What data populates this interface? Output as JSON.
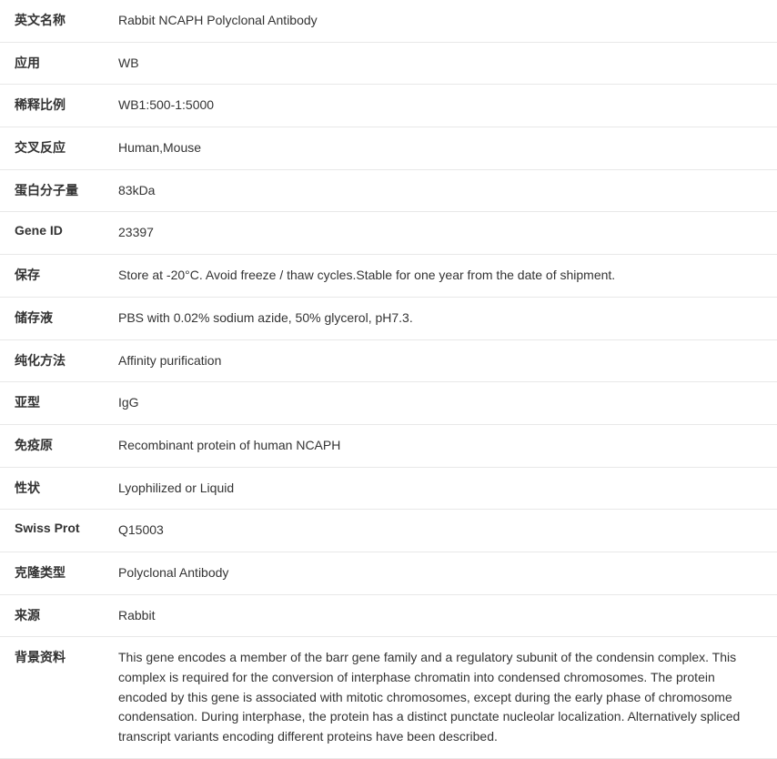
{
  "rows": [
    {
      "label": "英文名称",
      "value": "Rabbit NCAPH Polyclonal Antibody"
    },
    {
      "label": "应用",
      "value": "WB"
    },
    {
      "label": "稀释比例",
      "value": "WB1:500-1:5000"
    },
    {
      "label": "交叉反应",
      "value": "Human,Mouse"
    },
    {
      "label": "蛋白分子量",
      "value": "83kDa"
    },
    {
      "label": "Gene ID",
      "value": "23397"
    },
    {
      "label": "保存",
      "value": "Store at -20°C. Avoid freeze / thaw cycles.Stable for one year from the date of shipment."
    },
    {
      "label": "储存液",
      "value": "PBS with 0.02% sodium azide, 50% glycerol, pH7.3."
    },
    {
      "label": "纯化方法",
      "value": "Affinity purification"
    },
    {
      "label": "亚型",
      "value": "IgG"
    },
    {
      "label": "免疫原",
      "value": "Recombinant protein of human NCAPH"
    },
    {
      "label": "性状",
      "value": "Lyophilized or Liquid"
    },
    {
      "label": "Swiss Prot",
      "value": "Q15003"
    },
    {
      "label": "克隆类型",
      "value": "Polyclonal Antibody"
    },
    {
      "label": "来源",
      "value": "Rabbit"
    },
    {
      "label": "背景资料",
      "value": "This gene encodes a member of the barr gene family and a regulatory subunit of the condensin complex. This complex is required for the conversion of interphase chromatin into condensed chromosomes. The protein encoded by this gene is associated with mitotic chromosomes, except during the early phase of chromosome condensation. During interphase, the protein has a distinct punctate nucleolar localization. Alternatively spliced transcript variants encoding different proteins have been described."
    }
  ]
}
